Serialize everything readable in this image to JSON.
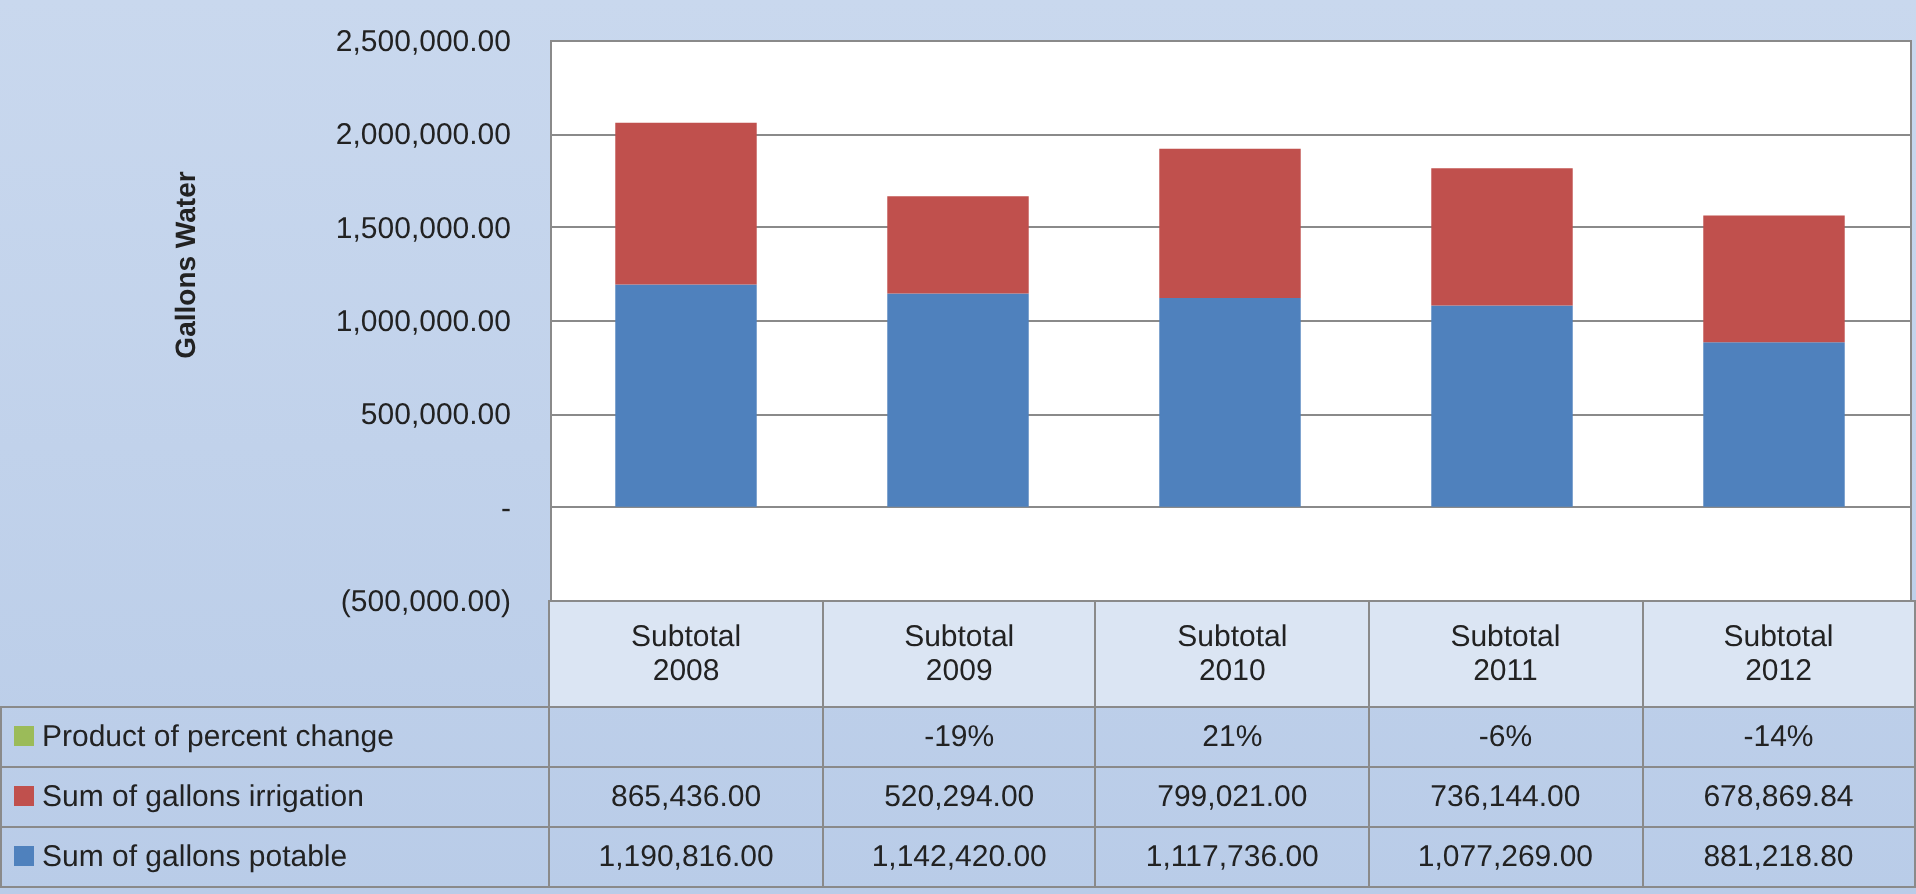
{
  "chart_data": {
    "type": "bar",
    "stacked": true,
    "ylabel": "Gallons Water",
    "categories": [
      "Subtotal 2008",
      "Subtotal 2009",
      "Subtotal 2010",
      "Subtotal 2011",
      "Subtotal 2012"
    ],
    "series": [
      {
        "name": "Sum of gallons potable",
        "color": "#4f81bd",
        "values": [
          1190816.0,
          1142420.0,
          1117736.0,
          1077269.0,
          881218.8
        ],
        "value_labels": [
          "1,190,816.00",
          "1,142,420.00",
          "1,117,736.00",
          "1,077,269.00",
          "881,218.80"
        ]
      },
      {
        "name": "Sum of gallons irrigation",
        "color": "#c0504d",
        "values": [
          865436.0,
          520294.0,
          799021.0,
          736144.0,
          678869.84
        ],
        "value_labels": [
          "865,436.00",
          "520,294.00",
          "799,021.00",
          "736,144.00",
          "678,869.84"
        ]
      },
      {
        "name": "Product of percent change",
        "color": "#9bbb59",
        "values": [
          null,
          -19,
          21,
          -6,
          -14
        ],
        "value_labels": [
          null,
          "-19%",
          "21%",
          "-6%",
          "-14%"
        ]
      }
    ],
    "ylim": [
      -500000,
      2500000
    ],
    "yticks": [
      {
        "value": -500000,
        "label": "(500,000.00)"
      },
      {
        "value": 0,
        "label": "-"
      },
      {
        "value": 500000,
        "label": "500,000.00"
      },
      {
        "value": 1000000,
        "label": "1,000,000.00"
      },
      {
        "value": 1500000,
        "label": "1,500,000.00"
      },
      {
        "value": 2000000,
        "label": "2,000,000.00"
      },
      {
        "value": 2500000,
        "label": "2,500,000.00"
      }
    ],
    "grid": "y",
    "legend": "bottom"
  }
}
